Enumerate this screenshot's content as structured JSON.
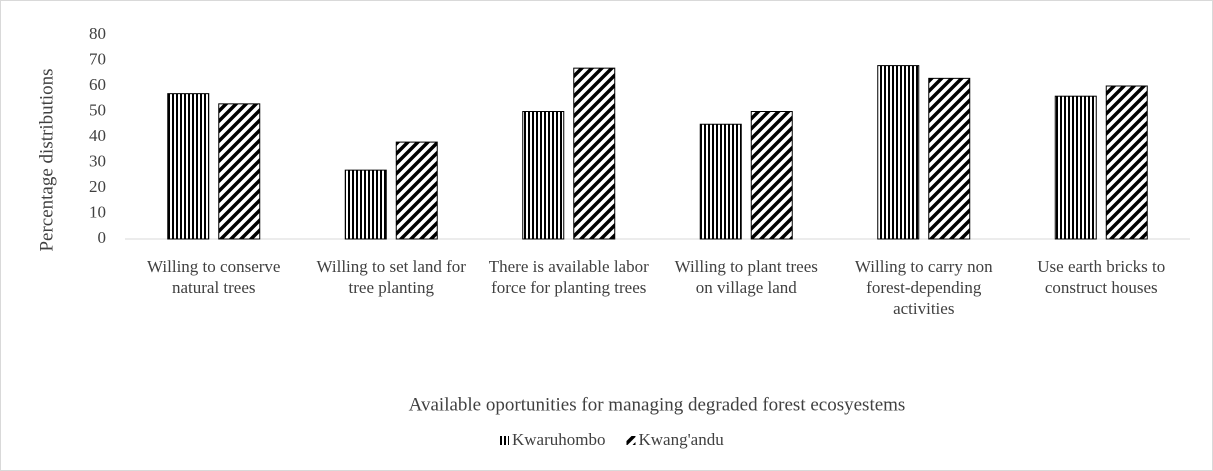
{
  "chart_data": {
    "type": "bar",
    "y_label": "Percentage distributions",
    "x_label": "Available oportunities for managing  degraded forest ecosyestems",
    "categories": [
      "Willing to conserve natural trees",
      "Willing to set land for tree planting",
      "There is available labor force for planting trees",
      "Willing to plant trees on village land",
      "Willing to carry non forest-depending activities",
      "Use earth bricks to construct houses"
    ],
    "series": [
      {
        "name": "Kwaruhombo",
        "color": "#000000",
        "pattern": "vertical",
        "values": [
          57,
          27,
          50,
          45,
          68,
          56
        ]
      },
      {
        "name": "Kwang'andu",
        "color": "#000000",
        "pattern": "diagonal",
        "values": [
          53,
          38,
          67,
          50,
          63,
          60
        ]
      }
    ],
    "ylim": [
      0,
      80
    ],
    "yticks": [
      0,
      10,
      20,
      30,
      40,
      50,
      60,
      70,
      80
    ],
    "grid": false,
    "legend": "bottom"
  }
}
